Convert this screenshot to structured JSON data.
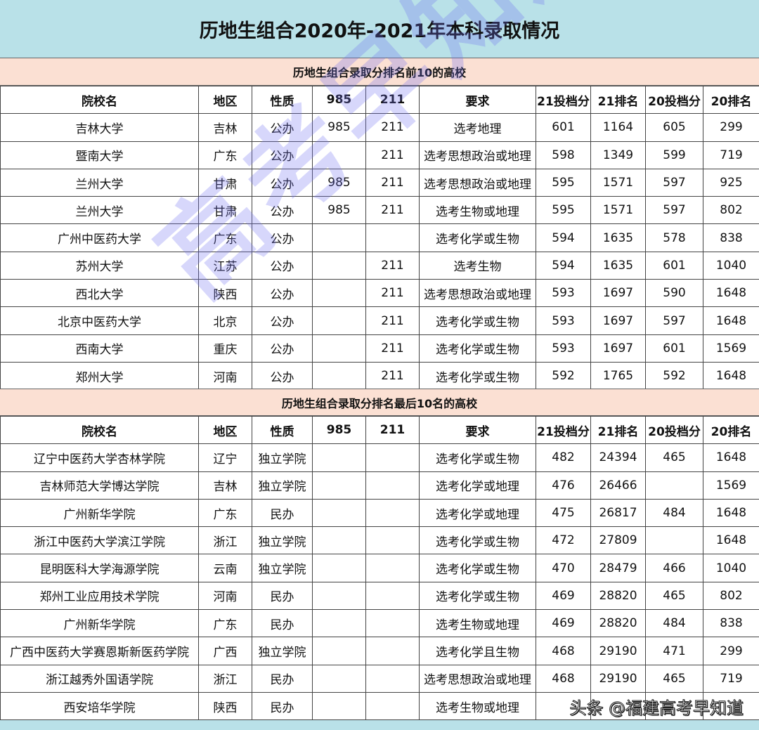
{
  "title": "历地生组合2020年-2021年本科录取情况",
  "columns": [
    "院校名",
    "地区",
    "性质",
    "985",
    "211",
    "要求",
    "21投档分",
    "21排名",
    "20投档分",
    "20排名"
  ],
  "top10": {
    "heading": "历地生组合录取分排名前10的高校",
    "rows": [
      [
        "吉林大学",
        "吉林",
        "公办",
        "985",
        "211",
        "选考地理",
        "601",
        "1164",
        "605",
        "299"
      ],
      [
        "暨南大学",
        "广东",
        "公办",
        "",
        "211",
        "选考思想政治或地理",
        "598",
        "1349",
        "599",
        "719"
      ],
      [
        "兰州大学",
        "甘肃",
        "公办",
        "985",
        "211",
        "选考思想政治或地理",
        "595",
        "1571",
        "597",
        "925"
      ],
      [
        "兰州大学",
        "甘肃",
        "公办",
        "985",
        "211",
        "选考生物或地理",
        "595",
        "1571",
        "597",
        "802"
      ],
      [
        "广州中医药大学",
        "广东",
        "公办",
        "",
        "",
        "选考化学或生物",
        "594",
        "1635",
        "578",
        "838"
      ],
      [
        "苏州大学",
        "江苏",
        "公办",
        "",
        "211",
        "选考生物",
        "594",
        "1635",
        "601",
        "1040"
      ],
      [
        "西北大学",
        "陕西",
        "公办",
        "",
        "211",
        "选考思想政治或地理",
        "593",
        "1697",
        "590",
        "1648"
      ],
      [
        "北京中医药大学",
        "北京",
        "公办",
        "",
        "211",
        "选考化学或生物",
        "593",
        "1697",
        "597",
        "1648"
      ],
      [
        "西南大学",
        "重庆",
        "公办",
        "",
        "211",
        "选考化学或生物",
        "593",
        "1697",
        "601",
        "1569"
      ],
      [
        "郑州大学",
        "河南",
        "公办",
        "",
        "211",
        "选考化学或生物",
        "592",
        "1765",
        "592",
        "1648"
      ]
    ]
  },
  "bottom10": {
    "heading": "历地生组合录取分排名最后10名的高校",
    "rows": [
      [
        "辽宁中医药大学杏林学院",
        "辽宁",
        "独立学院",
        "",
        "",
        "选考化学或生物",
        "482",
        "24394",
        "465",
        "1648"
      ],
      [
        "吉林师范大学博达学院",
        "吉林",
        "独立学院",
        "",
        "",
        "选考化学或地理",
        "476",
        "26466",
        "",
        "1569"
      ],
      [
        "广州新华学院",
        "广东",
        "民办",
        "",
        "",
        "选考化学或地理",
        "475",
        "26817",
        "484",
        "1648"
      ],
      [
        "浙江中医药大学滨江学院",
        "浙江",
        "独立学院",
        "",
        "",
        "选考化学或生物",
        "472",
        "27809",
        "",
        "1648"
      ],
      [
        "昆明医科大学海源学院",
        "云南",
        "独立学院",
        "",
        "",
        "选考化学或生物",
        "470",
        "28479",
        "466",
        "1040"
      ],
      [
        "郑州工业应用技术学院",
        "河南",
        "民办",
        "",
        "",
        "选考化学或生物",
        "469",
        "28820",
        "465",
        "802"
      ],
      [
        "广州新华学院",
        "广东",
        "民办",
        "",
        "",
        "选考生物或地理",
        "469",
        "28820",
        "484",
        "838"
      ],
      [
        "广西中医药大学赛恩斯新医药学院",
        "广西",
        "独立学院",
        "",
        "",
        "选考化学且生物",
        "468",
        "29190",
        "471",
        "299"
      ],
      [
        "浙江越秀外国语学院",
        "浙江",
        "民办",
        "",
        "",
        "选考思想政治或地理",
        "468",
        "29190",
        "465",
        "719"
      ],
      [
        "西安培华学院",
        "陕西",
        "民办",
        "",
        "",
        "选考生物或地理",
        "",
        "",
        "",
        ""
      ]
    ]
  },
  "watermark": "高考早知道",
  "credit": "头条 @福建高考早知道",
  "colors": {
    "title_bg": "#b9e1e8",
    "section_bg": "#fbe0d3"
  }
}
